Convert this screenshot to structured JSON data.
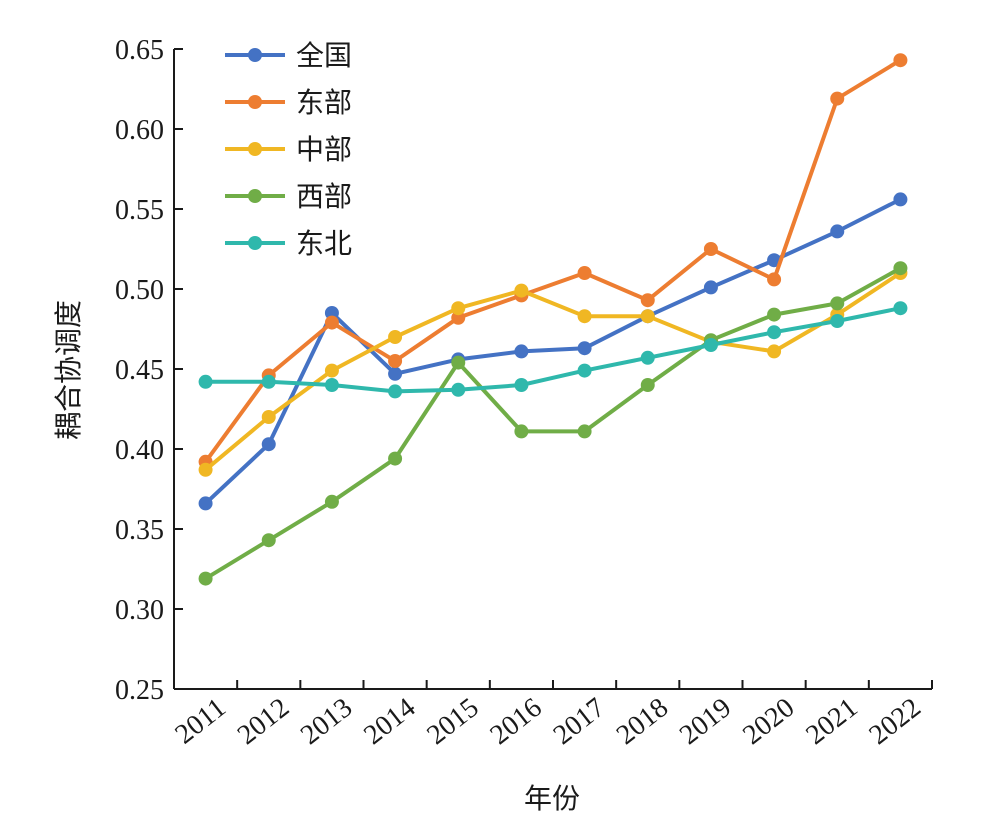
{
  "chart_data": {
    "type": "line",
    "title": "",
    "xlabel": "年份",
    "ylabel": "耦合协调度",
    "categories": [
      "2011",
      "2012",
      "2013",
      "2014",
      "2015",
      "2016",
      "2017",
      "2018",
      "2019",
      "2020",
      "2021",
      "2022"
    ],
    "ylim": [
      0.25,
      0.65
    ],
    "yticks": [
      "0.25",
      "0.30",
      "0.35",
      "0.40",
      "0.45",
      "0.50",
      "0.55",
      "0.60",
      "0.65"
    ],
    "grid": false,
    "legend_position": "top-left",
    "series": [
      {
        "name": "全国",
        "color": "#4472c4",
        "values": [
          0.366,
          0.403,
          0.485,
          0.447,
          0.456,
          0.461,
          0.463,
          0.483,
          0.501,
          0.518,
          0.536,
          0.556
        ]
      },
      {
        "name": "东部",
        "color": "#ed7d31",
        "values": [
          0.392,
          0.446,
          0.479,
          0.455,
          0.482,
          0.496,
          0.51,
          0.493,
          0.525,
          0.506,
          0.619,
          0.643
        ]
      },
      {
        "name": "中部",
        "color": "#f0b723",
        "values": [
          0.387,
          0.42,
          0.449,
          0.47,
          0.488,
          0.499,
          0.483,
          0.483,
          0.467,
          0.461,
          0.484,
          0.51
        ]
      },
      {
        "name": "西部",
        "color": "#70ad47",
        "values": [
          0.319,
          0.343,
          0.367,
          0.394,
          0.454,
          0.411,
          0.411,
          0.44,
          0.468,
          0.484,
          0.491,
          0.513
        ]
      },
      {
        "name": "东北",
        "color": "#2fb8ac",
        "values": [
          0.442,
          0.442,
          0.44,
          0.436,
          0.437,
          0.44,
          0.449,
          0.457,
          0.465,
          0.473,
          0.48,
          0.488
        ]
      }
    ]
  }
}
